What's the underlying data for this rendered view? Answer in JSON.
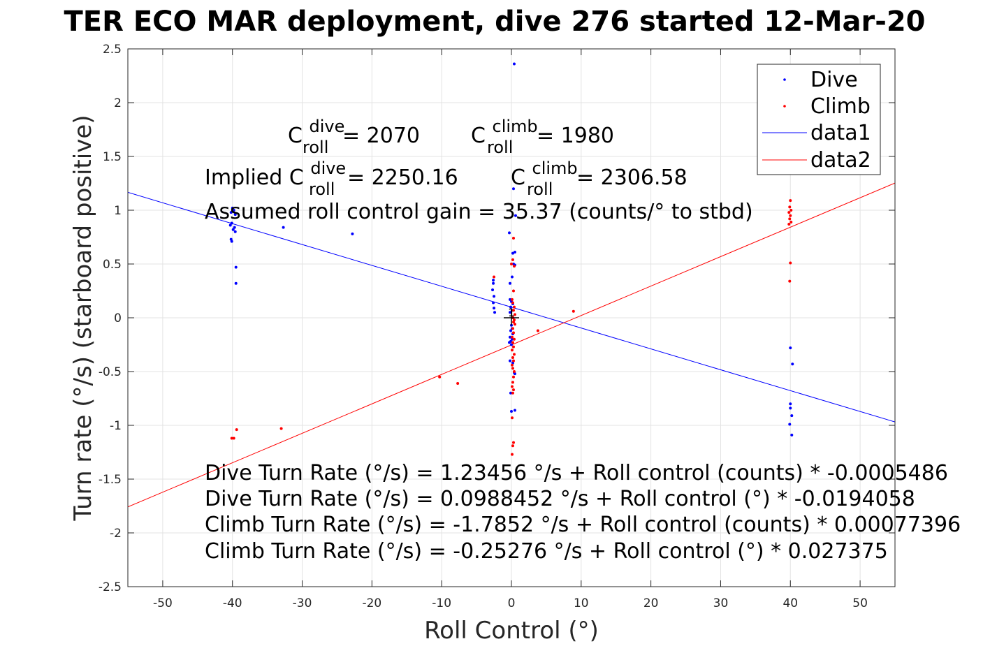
{
  "chart_data": {
    "type": "scatter",
    "title": "TER ECO MAR deployment, dive 276 started 12-Mar-20",
    "xlabel": "Roll Control (°)",
    "ylabel": "Turn rate (°/s) (starboard positive)",
    "xlim": [
      -55,
      55
    ],
    "ylim": [
      -2.5,
      2.5
    ],
    "xticks": [
      -50,
      -40,
      -30,
      -20,
      -10,
      0,
      10,
      20,
      30,
      40,
      50
    ],
    "yticks": [
      -2.5,
      -2,
      -1.5,
      -1,
      -0.5,
      0,
      0.5,
      1,
      1.5,
      2,
      2.5
    ],
    "grid": true,
    "legend_position": "top-right",
    "series": [
      {
        "name": "Dive",
        "kind": "points",
        "color": "#0000ff",
        "points": [
          [
            -40,
            1.02
          ],
          [
            -39.8,
            1.0
          ],
          [
            -40.2,
            0.98
          ],
          [
            -39.6,
            0.96
          ],
          [
            -40.1,
            0.88
          ],
          [
            -40.3,
            0.86
          ],
          [
            -39.7,
            0.84
          ],
          [
            -39.9,
            0.82
          ],
          [
            -39.6,
            0.8
          ],
          [
            -40.2,
            0.73
          ],
          [
            -40.1,
            0.71
          ],
          [
            -39.5,
            0.47
          ],
          [
            -39.5,
            0.32
          ],
          [
            -32.7,
            0.84
          ],
          [
            -22.8,
            0.78
          ],
          [
            -2.6,
            0.35
          ],
          [
            -2.6,
            0.32
          ],
          [
            -2.7,
            0.26
          ],
          [
            -2.5,
            0.2
          ],
          [
            -2.6,
            0.14
          ],
          [
            -2.5,
            0.09
          ],
          [
            -2.4,
            0.05
          ],
          [
            -0.3,
            0.79
          ],
          [
            0.2,
            0.6
          ],
          [
            0.4,
            2.36
          ],
          [
            0.3,
            1.2
          ],
          [
            0.6,
            0.95
          ],
          [
            0.5,
            0.61
          ],
          [
            0.3,
            0.5
          ],
          [
            0.5,
            0.49
          ],
          [
            -0.2,
            0.32
          ],
          [
            0.1,
            0.38
          ],
          [
            -0.2,
            0.17
          ],
          [
            0.0,
            0.15
          ],
          [
            0.2,
            0.13
          ],
          [
            -0.1,
            0.1
          ],
          [
            0.1,
            0.07
          ],
          [
            -0.2,
            0.05
          ],
          [
            0.0,
            -0.07
          ],
          [
            0.1,
            -0.1
          ],
          [
            -0.1,
            -0.12
          ],
          [
            0.2,
            -0.15
          ],
          [
            -0.2,
            -0.18
          ],
          [
            0.1,
            -0.2
          ],
          [
            -0.1,
            -0.22
          ],
          [
            -0.3,
            -0.23
          ],
          [
            0.0,
            -0.25
          ],
          [
            -0.2,
            -0.4
          ],
          [
            0.2,
            -0.42
          ],
          [
            0.4,
            -0.51
          ],
          [
            0.5,
            -0.52
          ],
          [
            -0.1,
            -0.7
          ],
          [
            0.0,
            -0.87
          ],
          [
            0.5,
            -0.86
          ],
          [
            40.0,
            -0.28
          ],
          [
            40.3,
            -0.43
          ],
          [
            40.0,
            -0.8
          ],
          [
            40.0,
            -0.84
          ],
          [
            40.2,
            -0.91
          ],
          [
            39.9,
            -0.99
          ],
          [
            40.2,
            -1.09
          ]
        ]
      },
      {
        "name": "Climb",
        "kind": "points",
        "color": "#ff0000",
        "points": [
          [
            -39.8,
            -1.12
          ],
          [
            -40.1,
            -1.12
          ],
          [
            -39.4,
            -1.04
          ],
          [
            -33.0,
            -1.03
          ],
          [
            -10.3,
            -0.55
          ],
          [
            -7.7,
            -0.61
          ],
          [
            -2.5,
            0.38
          ],
          [
            3.8,
            -0.12
          ],
          [
            8.9,
            0.06
          ],
          [
            0.3,
            0.74
          ],
          [
            0.2,
            0.54
          ],
          [
            0.0,
            0.5
          ],
          [
            0.4,
            0.48
          ],
          [
            0.3,
            0.25
          ],
          [
            0.1,
            0.17
          ],
          [
            0.2,
            0.14
          ],
          [
            0.4,
            0.1
          ],
          [
            0.3,
            0.07
          ],
          [
            0.5,
            0.03
          ],
          [
            0.2,
            0.0
          ],
          [
            0.4,
            -0.02
          ],
          [
            0.3,
            -0.04
          ],
          [
            0.5,
            -0.06
          ],
          [
            0.2,
            -0.1
          ],
          [
            0.3,
            -0.14
          ],
          [
            0.1,
            -0.18
          ],
          [
            0.4,
            -0.2
          ],
          [
            0.2,
            -0.23
          ],
          [
            0.3,
            -0.27
          ],
          [
            0.1,
            -0.3
          ],
          [
            0.4,
            -0.34
          ],
          [
            0.2,
            -0.37
          ],
          [
            0.3,
            -0.4
          ],
          [
            0.1,
            -0.44
          ],
          [
            0.2,
            -0.47
          ],
          [
            0.4,
            -0.5
          ],
          [
            0.3,
            -0.55
          ],
          [
            0.2,
            -0.6
          ],
          [
            0.1,
            -0.64
          ],
          [
            0.3,
            -0.67
          ],
          [
            0.2,
            -0.7
          ],
          [
            0.1,
            -0.93
          ],
          [
            0.3,
            -1.16
          ],
          [
            0.2,
            -1.19
          ],
          [
            0.1,
            -1.27
          ],
          [
            40.0,
            1.09
          ],
          [
            39.9,
            1.03
          ],
          [
            40.1,
            1.0
          ],
          [
            39.8,
            0.98
          ],
          [
            40.0,
            0.95
          ],
          [
            39.9,
            0.92
          ],
          [
            40.1,
            0.89
          ],
          [
            39.8,
            0.87
          ],
          [
            40.0,
            0.51
          ],
          [
            39.9,
            0.34
          ]
        ]
      },
      {
        "name": "data1",
        "kind": "line",
        "color": "#0000ff",
        "intercept": 0.0988452,
        "slope": -0.0194058
      },
      {
        "name": "data2",
        "kind": "line",
        "color": "#ff0000",
        "intercept": -0.25276,
        "slope": 0.027375
      }
    ],
    "marker": {
      "x": 0,
      "y": 0,
      "label": "1"
    },
    "annotations": {
      "c_roll_dive": {
        "prefix": "C",
        "sup": "dive",
        "sub": "roll",
        "suffix": " = 2070"
      },
      "c_roll_climb": {
        "prefix": "C",
        "sup": "climb",
        "sub": "roll",
        "suffix": " = 1980"
      },
      "implied_dive": {
        "prefix": "Implied C",
        "sup": "dive",
        "sub": "roll",
        "suffix": " = 2250.16"
      },
      "implied_climb": {
        "prefix": "C",
        "sup": "climb",
        "sub": "roll",
        "suffix": " = 2306.58"
      },
      "gain": "Assumed roll control gain = 35.37 (counts/° to stbd)",
      "fits": [
        "Dive Turn Rate (°/s) = 1.23456 °/s + Roll control (counts) * -0.0005486",
        "Dive Turn Rate (°/s) = 0.0988452 °/s + Roll control (°) * -0.0194058",
        "Climb Turn Rate (°/s) = -1.7852 °/s + Roll control (counts) * 0.00077396",
        "Climb Turn Rate (°/s) = -0.25276 °/s + Roll control (°) * 0.027375"
      ]
    }
  }
}
